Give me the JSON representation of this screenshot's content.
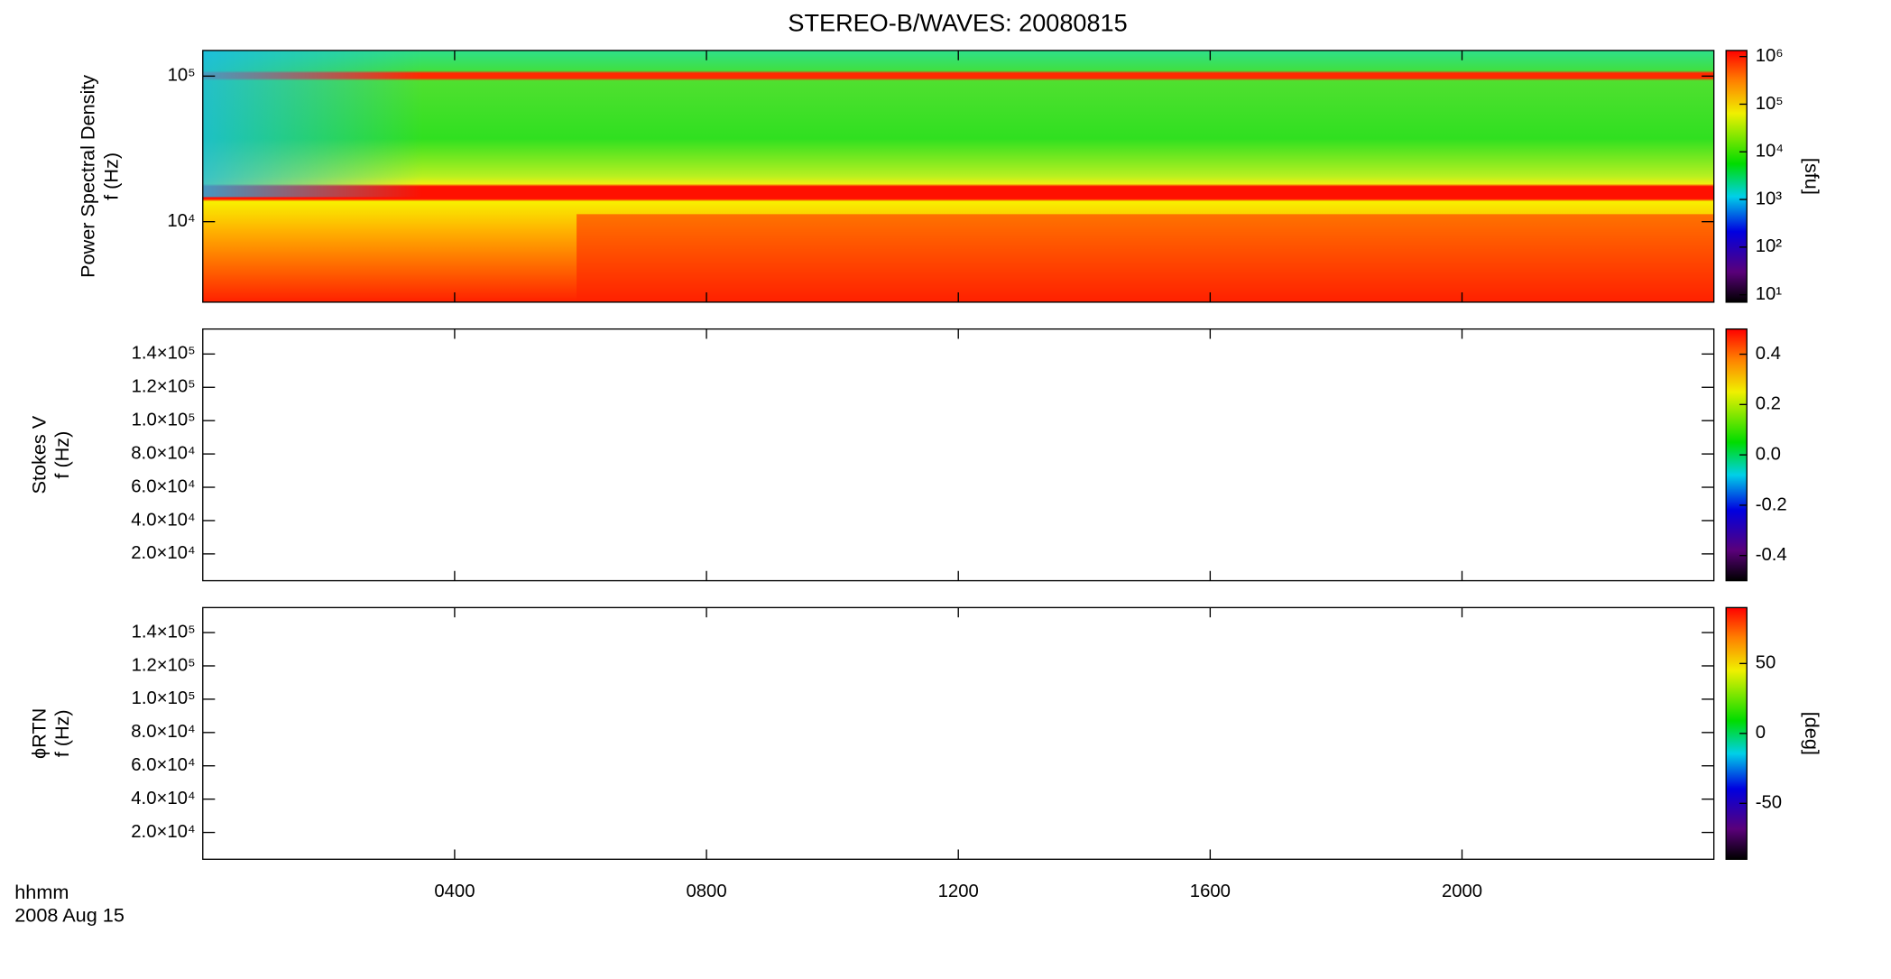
{
  "title": "STEREO-B/WAVES: 20080815",
  "x_label_lines": [
    "hhmm",
    "2008 Aug 15"
  ],
  "xlim": [
    0,
    24
  ],
  "xticks": [
    {
      "value": 4,
      "label": "0400"
    },
    {
      "value": 8,
      "label": "0800"
    },
    {
      "value": 12,
      "label": "1200"
    },
    {
      "value": 16,
      "label": "1600"
    },
    {
      "value": 20,
      "label": "2000"
    }
  ],
  "chart_data": [
    {
      "type": "spectrogram",
      "ylabel": [
        "Power Spectral Density",
        "f (Hz)"
      ],
      "log_y": true,
      "ylim": [
        2800,
        150000
      ],
      "yticks": [
        {
          "value": 10000,
          "label": "10⁴"
        },
        {
          "value": 100000,
          "label": "10⁵"
        }
      ],
      "colorbar": {
        "log": true,
        "lim": [
          7,
          1340000
        ],
        "label": "[sfu]",
        "ticks": [
          {
            "value": 10,
            "label": "10¹"
          },
          {
            "value": 100,
            "label": "10²"
          },
          {
            "value": 1000,
            "label": "10³"
          },
          {
            "value": 10000,
            "label": "10⁴"
          },
          {
            "value": 100000,
            "label": "10⁵"
          },
          {
            "value": 1000000,
            "label": "10⁶"
          }
        ]
      }
    },
    {
      "type": "spectrogram",
      "ylabel": [
        "Stokes V",
        "f (Hz)"
      ],
      "log_y": false,
      "ylim": [
        3900,
        155000
      ],
      "yticks": [
        {
          "value": 20000,
          "label": "2.0×10⁴"
        },
        {
          "value": 40000,
          "label": "4.0×10⁴"
        },
        {
          "value": 60000,
          "label": "6.0×10⁴"
        },
        {
          "value": 80000,
          "label": "8.0×10⁴"
        },
        {
          "value": 100000,
          "label": "1.0×10⁵"
        },
        {
          "value": 120000,
          "label": "1.2×10⁵"
        },
        {
          "value": 140000,
          "label": "1.4×10⁵"
        }
      ],
      "colorbar": {
        "log": false,
        "lim": [
          -0.5,
          0.5
        ],
        "ticks": [
          -0.4,
          -0.2,
          {
            "value": 0,
            "label": "0.0"
          },
          0.2,
          0.4
        ]
      }
    },
    {
      "type": "spectrogram",
      "ylabel": [
        "ϕRTN",
        "f (Hz)"
      ],
      "log_y": false,
      "ylim": [
        3900,
        155000
      ],
      "yticks": [
        {
          "value": 20000,
          "label": "2.0×10⁴"
        },
        {
          "value": 40000,
          "label": "4.0×10⁴"
        },
        {
          "value": 60000,
          "label": "6.0×10⁴"
        },
        {
          "value": 80000,
          "label": "8.0×10⁴"
        },
        {
          "value": 100000,
          "label": "1.0×10⁵"
        },
        {
          "value": 120000,
          "label": "1.2×10⁵"
        },
        {
          "value": 140000,
          "label": "1.4×10⁵"
        }
      ],
      "colorbar": {
        "log": false,
        "lim": [
          -90,
          90
        ],
        "label": "[deg]",
        "ticks": [
          -50,
          0,
          50
        ]
      }
    }
  ]
}
